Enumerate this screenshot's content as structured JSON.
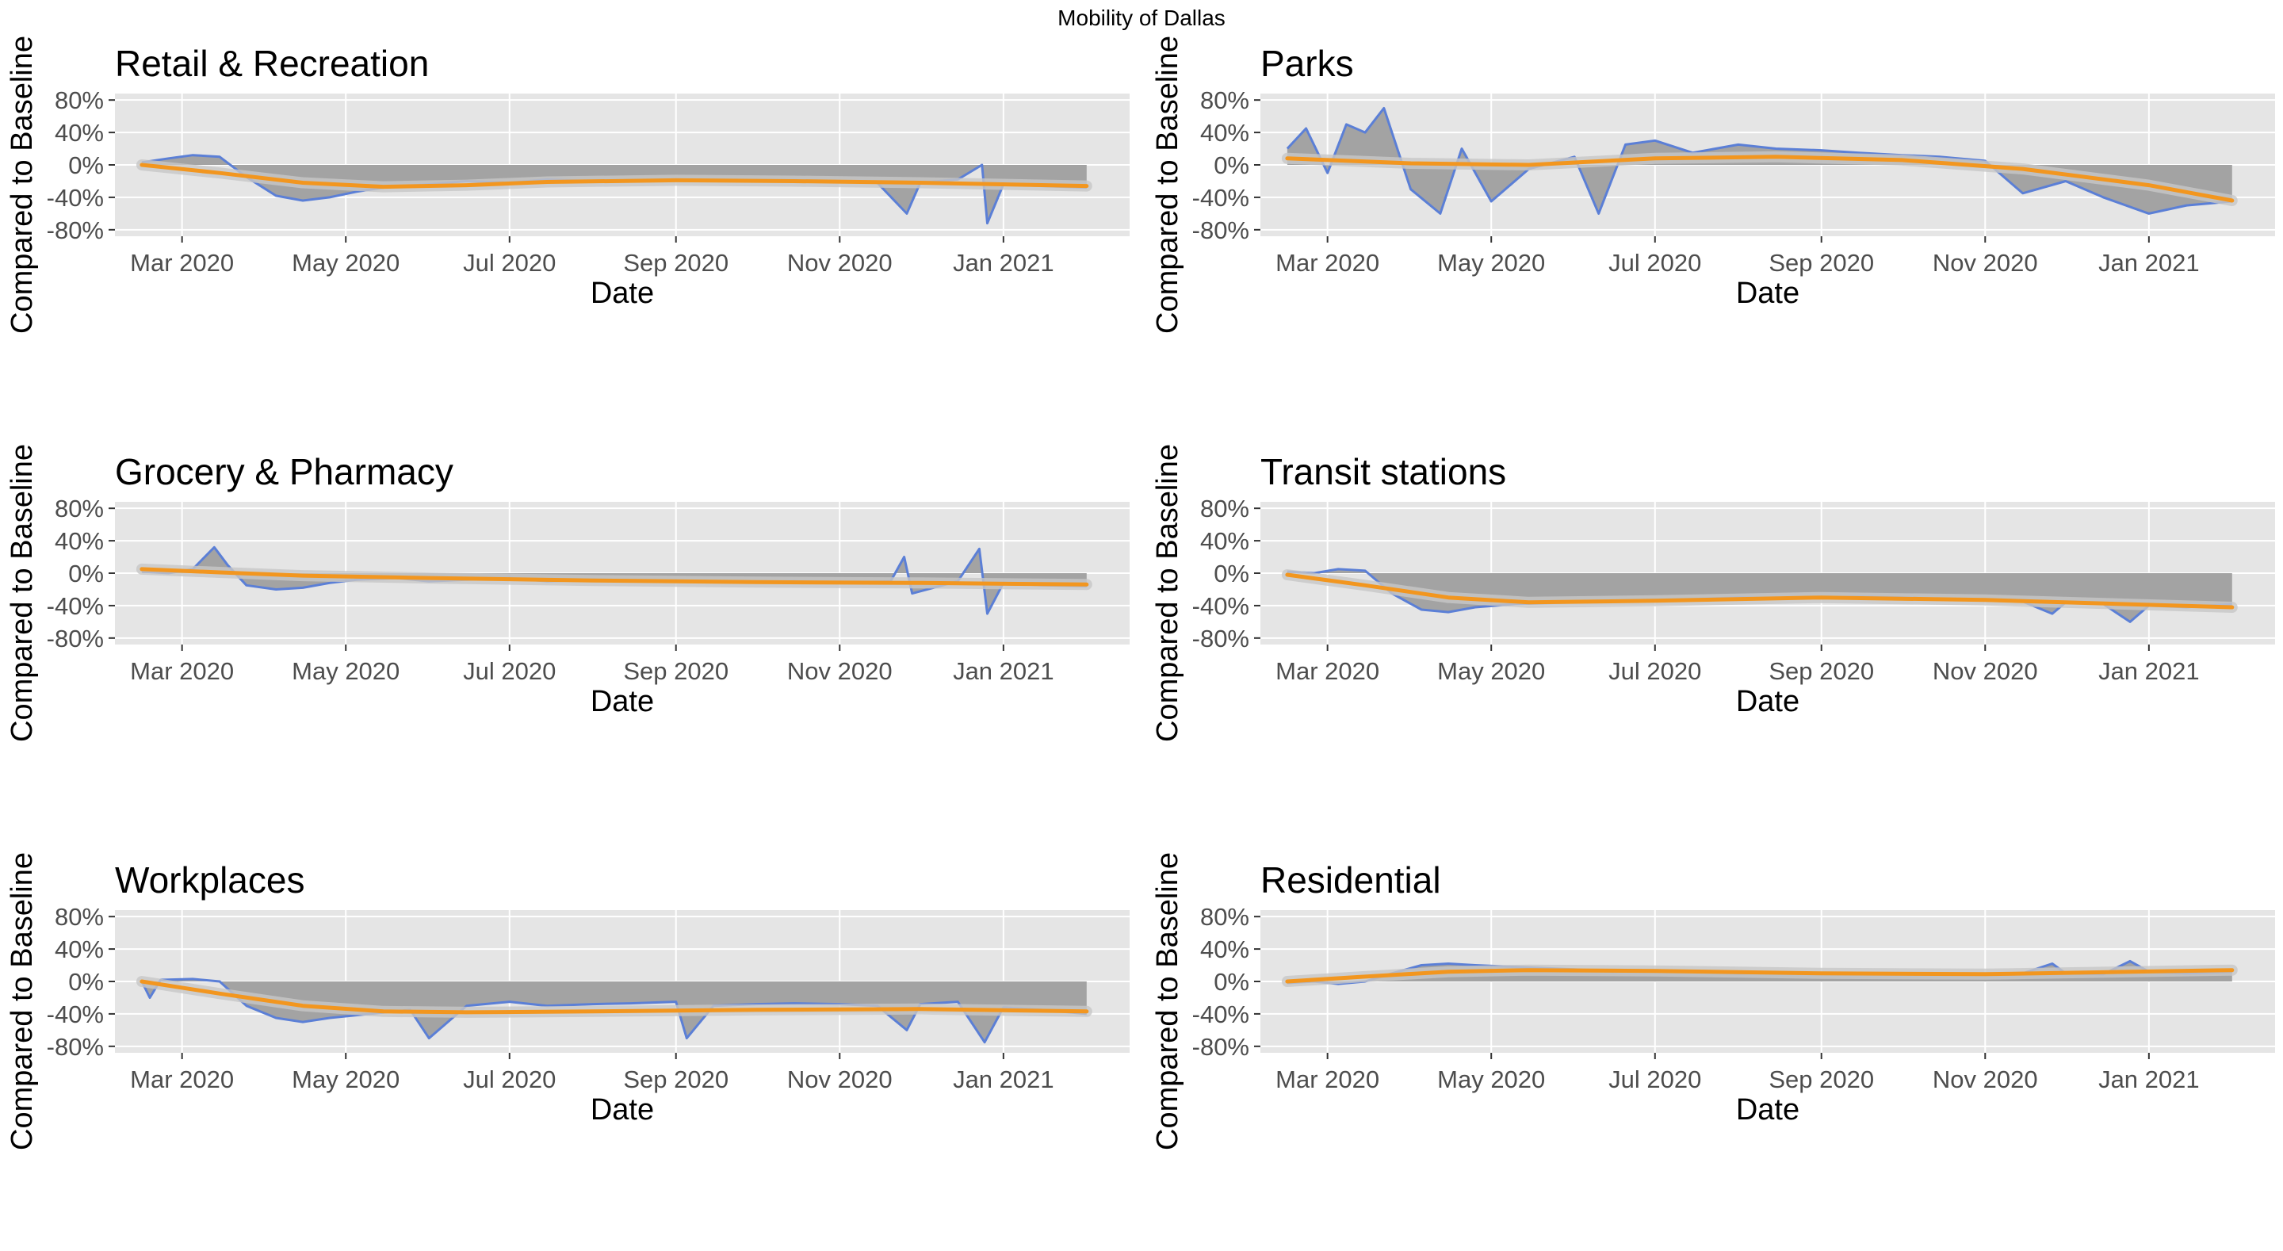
{
  "figure": {
    "title": "Mobility of Dallas"
  },
  "colors": {
    "panel_background": "#e5e5e5",
    "grid": "#ffffff",
    "area_fill": "#a3a3a3",
    "observed_line": "#5b7fd6",
    "trend_line": "#f2961f",
    "trend_band": "#c7c7c7"
  },
  "chart_data": [
    {
      "type": "area",
      "title": "Retail & Recreation",
      "xlabel": "Date",
      "ylabel": "Compared to Baseline",
      "x_ticks": [
        "Mar 2020",
        "May 2020",
        "Jul 2020",
        "Sep 2020",
        "Nov 2020",
        "Jan 2021"
      ],
      "y_ticks": [
        "80%",
        "40%",
        "0%",
        "-40%",
        "-80%"
      ],
      "ylim": [
        -88,
        88
      ],
      "xlim": [
        "2020-02-05",
        "2021-02-17"
      ],
      "series": [
        {
          "x": [
            "2020-02-15",
            "2020-02-25",
            "2020-03-05",
            "2020-03-15",
            "2020-03-25",
            "2020-04-05",
            "2020-04-15",
            "2020-04-25",
            "2020-05-05",
            "2020-05-15",
            "2020-06-01",
            "2020-06-15",
            "2020-07-01",
            "2020-07-15",
            "2020-08-01",
            "2020-08-15",
            "2020-09-01",
            "2020-09-15",
            "2020-10-01",
            "2020-10-15",
            "2020-11-01",
            "2020-11-15",
            "2020-11-26",
            "2020-12-01",
            "2020-12-15",
            "2020-12-24",
            "2020-12-26",
            "2021-01-01",
            "2021-01-15",
            "2021-02-01"
          ],
          "values": [
            3,
            8,
            12,
            10,
            -15,
            -38,
            -44,
            -40,
            -33,
            -28,
            -24,
            -20,
            -22,
            -18,
            -20,
            -19,
            -18,
            -19,
            -20,
            -19,
            -20,
            -22,
            -60,
            -22,
            -18,
            0,
            -72,
            -24,
            -26,
            -28
          ]
        },
        {
          "x": [
            "2020-02-15",
            "2020-03-15",
            "2020-04-15",
            "2020-05-15",
            "2020-06-15",
            "2020-07-15",
            "2020-09-01",
            "2020-10-15",
            "2020-12-01",
            "2021-02-01"
          ],
          "values": [
            0,
            -10,
            -22,
            -27,
            -25,
            -21,
            -19,
            -20,
            -22,
            -26
          ]
        }
      ]
    },
    {
      "type": "area",
      "title": "Parks",
      "xlabel": "Date",
      "ylabel": "Compared to Baseline",
      "x_ticks": [
        "Mar 2020",
        "May 2020",
        "Jul 2020",
        "Sep 2020",
        "Nov 2020",
        "Jan 2021"
      ],
      "y_ticks": [
        "80%",
        "40%",
        "0%",
        "-40%",
        "-80%"
      ],
      "ylim": [
        -88,
        88
      ],
      "xlim": [
        "2020-02-05",
        "2021-02-17"
      ],
      "series": [
        {
          "x": [
            "2020-02-15",
            "2020-02-22",
            "2020-03-01",
            "2020-03-08",
            "2020-03-15",
            "2020-03-22",
            "2020-04-01",
            "2020-04-12",
            "2020-04-20",
            "2020-05-01",
            "2020-05-15",
            "2020-06-01",
            "2020-06-10",
            "2020-06-20",
            "2020-07-01",
            "2020-07-15",
            "2020-08-01",
            "2020-08-15",
            "2020-09-01",
            "2020-09-15",
            "2020-10-01",
            "2020-10-15",
            "2020-11-01",
            "2020-11-15",
            "2020-12-01",
            "2020-12-15",
            "2021-01-01",
            "2021-01-15",
            "2021-02-01"
          ],
          "values": [
            20,
            45,
            -10,
            50,
            40,
            70,
            -30,
            -60,
            20,
            -45,
            -5,
            10,
            -60,
            25,
            30,
            15,
            25,
            20,
            18,
            15,
            12,
            10,
            5,
            -35,
            -20,
            -40,
            -60,
            -50,
            -45
          ]
        },
        {
          "x": [
            "2020-02-15",
            "2020-04-01",
            "2020-05-15",
            "2020-07-01",
            "2020-08-15",
            "2020-10-01",
            "2020-11-15",
            "2021-01-01",
            "2021-02-01"
          ],
          "values": [
            8,
            2,
            0,
            8,
            10,
            6,
            -5,
            -25,
            -44
          ]
        }
      ]
    },
    {
      "type": "area",
      "title": "Grocery & Pharmacy",
      "xlabel": "Date",
      "ylabel": "Compared to Baseline",
      "x_ticks": [
        "Mar 2020",
        "May 2020",
        "Jul 2020",
        "Sep 2020",
        "Nov 2020",
        "Jan 2021"
      ],
      "y_ticks": [
        "80%",
        "40%",
        "0%",
        "-40%",
        "-80%"
      ],
      "ylim": [
        -88,
        88
      ],
      "xlim": [
        "2020-02-05",
        "2021-02-17"
      ],
      "series": [
        {
          "x": [
            "2020-02-15",
            "2020-02-25",
            "2020-03-05",
            "2020-03-13",
            "2020-03-18",
            "2020-03-25",
            "2020-04-05",
            "2020-04-15",
            "2020-04-25",
            "2020-05-05",
            "2020-05-20",
            "2020-06-01",
            "2020-06-15",
            "2020-07-01",
            "2020-07-15",
            "2020-08-01",
            "2020-08-15",
            "2020-09-01",
            "2020-09-15",
            "2020-10-01",
            "2020-10-15",
            "2020-11-01",
            "2020-11-20",
            "2020-11-25",
            "2020-11-28",
            "2020-12-15",
            "2020-12-23",
            "2020-12-26",
            "2021-01-01",
            "2021-01-15",
            "2021-02-01"
          ],
          "values": [
            2,
            0,
            5,
            32,
            10,
            -15,
            -20,
            -18,
            -12,
            -8,
            -6,
            -10,
            -8,
            -6,
            -10,
            -8,
            -10,
            -9,
            -10,
            -11,
            -10,
            -12,
            -10,
            20,
            -25,
            -10,
            30,
            -50,
            -12,
            -15,
            -16
          ]
        },
        {
          "x": [
            "2020-02-15",
            "2020-03-15",
            "2020-04-15",
            "2020-06-01",
            "2020-08-01",
            "2020-10-01",
            "2020-12-01",
            "2021-02-01"
          ],
          "values": [
            5,
            1,
            -3,
            -6,
            -9,
            -11,
            -12,
            -14
          ]
        }
      ]
    },
    {
      "type": "area",
      "title": "Transit stations",
      "xlabel": "Date",
      "ylabel": "Compared to Baseline",
      "x_ticks": [
        "Mar 2020",
        "May 2020",
        "Jul 2020",
        "Sep 2020",
        "Nov 2020",
        "Jan 2021"
      ],
      "y_ticks": [
        "80%",
        "40%",
        "0%",
        "-40%",
        "-80%"
      ],
      "ylim": [
        -88,
        88
      ],
      "xlim": [
        "2020-02-05",
        "2021-02-17"
      ],
      "series": [
        {
          "x": [
            "2020-02-15",
            "2020-02-25",
            "2020-03-05",
            "2020-03-15",
            "2020-03-25",
            "2020-04-05",
            "2020-04-15",
            "2020-04-25",
            "2020-05-10",
            "2020-06-01",
            "2020-06-15",
            "2020-07-01",
            "2020-07-15",
            "2020-08-01",
            "2020-08-15",
            "2020-09-01",
            "2020-09-15",
            "2020-10-01",
            "2020-10-15",
            "2020-11-01",
            "2020-11-15",
            "2020-11-26",
            "2020-12-01",
            "2020-12-15",
            "2020-12-25",
            "2021-01-01",
            "2021-01-15",
            "2021-02-01"
          ],
          "values": [
            2,
            0,
            5,
            3,
            -25,
            -45,
            -48,
            -42,
            -38,
            -36,
            -34,
            -33,
            -32,
            -30,
            -31,
            -30,
            -29,
            -30,
            -32,
            -34,
            -35,
            -50,
            -36,
            -38,
            -60,
            -40,
            -42,
            -38
          ]
        },
        {
          "x": [
            "2020-02-15",
            "2020-03-15",
            "2020-04-15",
            "2020-05-15",
            "2020-07-01",
            "2020-09-01",
            "2020-11-01",
            "2021-02-01"
          ],
          "values": [
            -2,
            -15,
            -30,
            -36,
            -34,
            -30,
            -33,
            -42
          ]
        }
      ]
    },
    {
      "type": "area",
      "title": "Workplaces",
      "xlabel": "Date",
      "ylabel": "Compared to Baseline",
      "x_ticks": [
        "Mar 2020",
        "May 2020",
        "Jul 2020",
        "Sep 2020",
        "Nov 2020",
        "Jan 2021"
      ],
      "y_ticks": [
        "80%",
        "40%",
        "0%",
        "-40%",
        "-80%"
      ],
      "ylim": [
        -88,
        88
      ],
      "xlim": [
        "2020-02-05",
        "2021-02-17"
      ],
      "series": [
        {
          "x": [
            "2020-02-15",
            "2020-02-18",
            "2020-02-22",
            "2020-03-05",
            "2020-03-15",
            "2020-03-25",
            "2020-04-05",
            "2020-04-15",
            "2020-04-25",
            "2020-05-10",
            "2020-05-25",
            "2020-06-01",
            "2020-06-15",
            "2020-07-01",
            "2020-07-15",
            "2020-08-01",
            "2020-08-15",
            "2020-09-01",
            "2020-09-05",
            "2020-09-15",
            "2020-10-01",
            "2020-10-15",
            "2020-11-01",
            "2020-11-15",
            "2020-11-26",
            "2020-12-01",
            "2020-12-15",
            "2020-12-25",
            "2021-01-01",
            "2021-01-15",
            "2021-02-01"
          ],
          "values": [
            0,
            -20,
            2,
            3,
            0,
            -30,
            -45,
            -50,
            -45,
            -40,
            -35,
            -70,
            -30,
            -25,
            -30,
            -28,
            -27,
            -25,
            -70,
            -30,
            -28,
            -27,
            -28,
            -30,
            -60,
            -28,
            -25,
            -75,
            -32,
            -35,
            -40
          ]
        },
        {
          "x": [
            "2020-02-15",
            "2020-03-15",
            "2020-04-15",
            "2020-05-15",
            "2020-06-15",
            "2020-08-01",
            "2020-10-01",
            "2020-12-01",
            "2021-02-01"
          ],
          "values": [
            0,
            -15,
            -30,
            -37,
            -38,
            -37,
            -35,
            -34,
            -37
          ]
        }
      ]
    },
    {
      "type": "area",
      "title": "Residential",
      "xlabel": "Date",
      "ylabel": "Compared to Baseline",
      "x_ticks": [
        "Mar 2020",
        "May 2020",
        "Jul 2020",
        "Sep 2020",
        "Nov 2020",
        "Jan 2021"
      ],
      "y_ticks": [
        "80%",
        "40%",
        "0%",
        "-40%",
        "-80%"
      ],
      "ylim": [
        -88,
        88
      ],
      "xlim": [
        "2020-02-05",
        "2021-02-17"
      ],
      "series": [
        {
          "x": [
            "2020-02-15",
            "2020-02-25",
            "2020-03-05",
            "2020-03-15",
            "2020-03-25",
            "2020-04-05",
            "2020-04-15",
            "2020-04-25",
            "2020-05-10",
            "2020-06-01",
            "2020-06-15",
            "2020-07-01",
            "2020-07-15",
            "2020-08-01",
            "2020-08-15",
            "2020-09-01",
            "2020-09-15",
            "2020-10-01",
            "2020-10-15",
            "2020-11-01",
            "2020-11-15",
            "2020-11-26",
            "2020-12-01",
            "2020-12-15",
            "2020-12-25",
            "2021-01-01",
            "2021-01-15",
            "2021-02-01"
          ],
          "values": [
            -2,
            0,
            -3,
            0,
            10,
            20,
            22,
            20,
            18,
            15,
            12,
            14,
            12,
            10,
            11,
            10,
            9,
            9,
            10,
            9,
            10,
            22,
            10,
            9,
            25,
            12,
            10,
            12
          ]
        },
        {
          "x": [
            "2020-02-15",
            "2020-03-15",
            "2020-04-15",
            "2020-05-15",
            "2020-07-01",
            "2020-09-01",
            "2020-11-01",
            "2021-02-01"
          ],
          "values": [
            0,
            6,
            12,
            14,
            13,
            10,
            9,
            14
          ]
        }
      ]
    }
  ]
}
